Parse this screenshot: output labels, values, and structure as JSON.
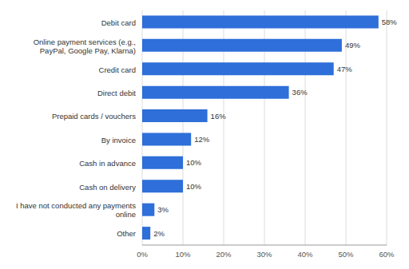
{
  "chart_data": {
    "type": "bar",
    "orientation": "horizontal",
    "categories": [
      "Debit card",
      "Online payment services (e.g., PayPal, Google Pay, Klarna)",
      "Credit card",
      "Direct debit",
      "Prepaid cards / vouchers",
      "By invoice",
      "Cash in advance",
      "Cash on delivery",
      "I have not conducted any payments online",
      "Other"
    ],
    "values": [
      58,
      49,
      47,
      36,
      16,
      12,
      10,
      10,
      3,
      2
    ],
    "value_labels": [
      "58%",
      "49%",
      "47%",
      "36%",
      "16%",
      "12%",
      "10%",
      "10%",
      "3%",
      "2%"
    ],
    "data_labels": true,
    "color": "#2e6fd9",
    "xlim": [
      0,
      60
    ],
    "xticks": [
      {
        "value": 0,
        "label": "0%"
      },
      {
        "value": 10,
        "label": "10%"
      },
      {
        "value": 20,
        "label": "20%"
      },
      {
        "value": 30,
        "label": "30%"
      },
      {
        "value": 40,
        "label": "40%"
      },
      {
        "value": 50,
        "label": "50%"
      },
      {
        "value": 60,
        "label": "60%"
      }
    ],
    "grid": true
  }
}
